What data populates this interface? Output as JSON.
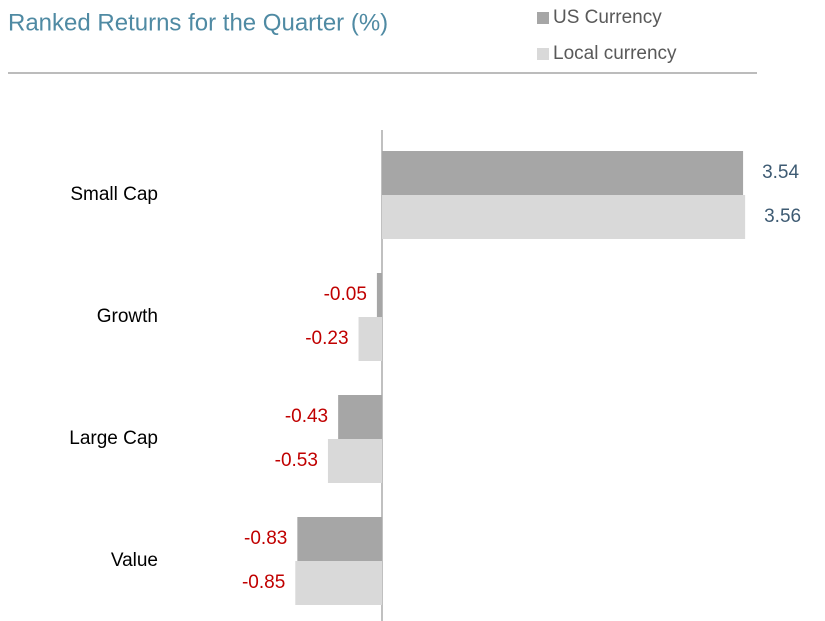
{
  "chart_data": {
    "type": "bar",
    "orientation": "horizontal",
    "title": "Ranked Returns for the Quarter (%)",
    "categories": [
      "Small Cap",
      "Growth",
      "Large Cap",
      "Value"
    ],
    "series": [
      {
        "name": "US Currency",
        "color": "#a6a6a6",
        "values": [
          3.54,
          -0.05,
          -0.43,
          -0.83
        ]
      },
      {
        "name": "Local currency",
        "color": "#d9d9d9",
        "values": [
          3.56,
          -0.23,
          -0.53,
          -0.85
        ]
      }
    ],
    "positive_label_color": "#3e5b73",
    "negative_label_color": "#c00000",
    "title_color": "#4f8aa3"
  }
}
